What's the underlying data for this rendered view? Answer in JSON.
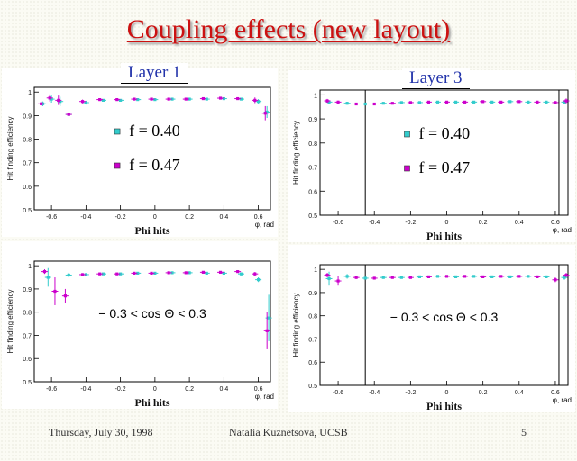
{
  "slide": {
    "title": "Coupling effects (new layout)",
    "footer_date": "Thursday, July 30, 1998",
    "footer_author": "Natalia Kuznetsova, UCSB",
    "footer_page": "5"
  },
  "labels": {
    "layer1": "Layer 1",
    "layer3": "Layer 3"
  },
  "colors": {
    "title": "#cc1111",
    "layer_label": "#2233aa",
    "series_f040": "#33cccc",
    "series_f047": "#cc00cc"
  },
  "legend": [
    {
      "label": "f = 0.40",
      "color": "#33cccc"
    },
    {
      "label": "f = 0.47",
      "color": "#cc00cc"
    }
  ],
  "chart_data": [
    {
      "type": "scatter",
      "panel": "layer1-top",
      "ylabel": "Hit finding efficiency",
      "xlabel": "Phi hits",
      "x_unit_label": "φ, rad",
      "annotation": "",
      "xlim": [
        -0.7,
        0.67
      ],
      "ylim": [
        0.5,
        1.02
      ],
      "xticks": [
        -0.6,
        -0.4,
        -0.2,
        0,
        0.2,
        0.4,
        0.6
      ],
      "xtick_labels": [
        "-0.6",
        "-0.4",
        "-0.2",
        "0",
        "0.2",
        "0.4",
        "0.6"
      ],
      "yticks": [
        0.5,
        0.6,
        0.7,
        0.8,
        0.9,
        1.0
      ],
      "ytick_labels": [
        "0.5",
        "0.6",
        "0.7",
        "0.8",
        "0.9",
        "1"
      ],
      "vlines": [],
      "series": [
        {
          "name": "f = 0.40",
          "color": "#33cccc",
          "x": [
            -0.65,
            -0.6,
            -0.55,
            -0.5,
            -0.4,
            -0.3,
            -0.2,
            -0.1,
            0.0,
            0.1,
            0.2,
            0.3,
            0.4,
            0.5,
            0.6,
            0.65
          ],
          "y": [
            0.95,
            0.97,
            0.96,
            0.905,
            0.955,
            0.965,
            0.965,
            0.968,
            0.968,
            0.97,
            0.97,
            0.97,
            0.972,
            0.97,
            0.96,
            0.915
          ],
          "err": [
            0.01,
            0.015,
            0.02,
            0.005,
            0.008,
            0.004,
            0.004,
            0.004,
            0.004,
            0.004,
            0.004,
            0.004,
            0.004,
            0.004,
            0.01,
            0.025
          ]
        },
        {
          "name": "f = 0.47",
          "color": "#cc00cc",
          "x": [
            -0.66,
            -0.61,
            -0.56,
            -0.5,
            -0.42,
            -0.32,
            -0.22,
            -0.12,
            -0.02,
            0.08,
            0.18,
            0.28,
            0.38,
            0.48,
            0.58,
            0.64
          ],
          "y": [
            0.95,
            0.975,
            0.965,
            0.905,
            0.96,
            0.968,
            0.968,
            0.97,
            0.97,
            0.97,
            0.97,
            0.972,
            0.974,
            0.972,
            0.965,
            0.91
          ],
          "err": [
            0.01,
            0.015,
            0.02,
            0.005,
            0.008,
            0.004,
            0.004,
            0.004,
            0.004,
            0.004,
            0.004,
            0.004,
            0.004,
            0.004,
            0.012,
            0.03
          ]
        }
      ]
    },
    {
      "type": "scatter",
      "panel": "layer3-top",
      "ylabel": "Hit finding efficiency",
      "xlabel": "Phi hits",
      "x_unit_label": "φ, rad",
      "annotation": "",
      "xlim": [
        -0.7,
        0.67
      ],
      "ylim": [
        0.5,
        1.02
      ],
      "xticks": [
        -0.6,
        -0.4,
        -0.2,
        0,
        0.2,
        0.4,
        0.6
      ],
      "xtick_labels": [
        "-0.6",
        "-0.4",
        "-0.2",
        "0",
        "0.2",
        "0.4",
        "0.6"
      ],
      "yticks": [
        0.5,
        0.6,
        0.7,
        0.8,
        0.9,
        1.0
      ],
      "ytick_labels": [
        "0.5",
        "0.6",
        "0.7",
        "0.8",
        "0.9",
        "1"
      ],
      "vlines": [
        -0.45,
        0.62
      ],
      "series": [
        {
          "name": "f = 0.40",
          "color": "#33cccc",
          "x": [
            -0.65,
            -0.55,
            -0.45,
            -0.35,
            -0.25,
            -0.15,
            -0.05,
            0.05,
            0.15,
            0.25,
            0.35,
            0.45,
            0.55,
            0.65
          ],
          "y": [
            0.97,
            0.965,
            0.962,
            0.965,
            0.968,
            0.968,
            0.97,
            0.97,
            0.97,
            0.97,
            0.972,
            0.97,
            0.97,
            0.97
          ],
          "err": [
            0.008,
            0.006,
            0.004,
            0.004,
            0.004,
            0.004,
            0.004,
            0.004,
            0.004,
            0.004,
            0.004,
            0.004,
            0.004,
            0.008
          ]
        },
        {
          "name": "f = 0.47",
          "color": "#cc00cc",
          "x": [
            -0.66,
            -0.6,
            -0.5,
            -0.4,
            -0.3,
            -0.2,
            -0.1,
            0.0,
            0.1,
            0.2,
            0.3,
            0.4,
            0.5,
            0.6,
            0.66
          ],
          "y": [
            0.975,
            0.97,
            0.962,
            0.962,
            0.965,
            0.968,
            0.97,
            0.97,
            0.97,
            0.972,
            0.97,
            0.972,
            0.97,
            0.968,
            0.975
          ],
          "err": [
            0.008,
            0.006,
            0.004,
            0.004,
            0.004,
            0.004,
            0.004,
            0.004,
            0.004,
            0.004,
            0.004,
            0.004,
            0.004,
            0.006,
            0.01
          ]
        }
      ]
    },
    {
      "type": "scatter",
      "panel": "layer1-bottom",
      "ylabel": "Hit finding efficiency",
      "xlabel": "Phi hits",
      "x_unit_label": "φ, rad",
      "annotation": "− 0.3 < cos Θ < 0.3",
      "xlim": [
        -0.7,
        0.67
      ],
      "ylim": [
        0.5,
        1.02
      ],
      "xticks": [
        -0.6,
        -0.4,
        -0.2,
        0,
        0.2,
        0.4,
        0.6
      ],
      "xtick_labels": [
        "-0.6",
        "-0.4",
        "-0.2",
        "0",
        "0.2",
        "0.4",
        "0.6"
      ],
      "yticks": [
        0.5,
        0.6,
        0.7,
        0.8,
        0.9,
        1.0
      ],
      "ytick_labels": [
        "0.5",
        "0.6",
        "0.7",
        "0.8",
        "0.9",
        "1"
      ],
      "vlines": [],
      "series": [
        {
          "name": "f = 0.40",
          "color": "#33cccc",
          "x": [
            -0.62,
            -0.5,
            -0.4,
            -0.3,
            -0.2,
            -0.1,
            0.0,
            0.1,
            0.2,
            0.3,
            0.4,
            0.5,
            0.6,
            0.66
          ],
          "y": [
            0.95,
            0.96,
            0.962,
            0.965,
            0.965,
            0.968,
            0.968,
            0.97,
            0.97,
            0.968,
            0.968,
            0.965,
            0.94,
            0.775
          ],
          "err": [
            0.04,
            0.01,
            0.006,
            0.005,
            0.005,
            0.004,
            0.004,
            0.004,
            0.004,
            0.004,
            0.004,
            0.006,
            0.01,
            0.1
          ]
        },
        {
          "name": "f = 0.47",
          "color": "#cc00cc",
          "x": [
            -0.64,
            -0.58,
            -0.52,
            -0.42,
            -0.32,
            -0.22,
            -0.12,
            -0.02,
            0.08,
            0.18,
            0.28,
            0.38,
            0.48,
            0.58,
            0.65
          ],
          "y": [
            0.975,
            0.89,
            0.87,
            0.962,
            0.965,
            0.965,
            0.968,
            0.968,
            0.97,
            0.97,
            0.972,
            0.972,
            0.975,
            0.965,
            0.72
          ],
          "err": [
            0.01,
            0.06,
            0.03,
            0.006,
            0.005,
            0.005,
            0.004,
            0.004,
            0.004,
            0.004,
            0.004,
            0.004,
            0.004,
            0.008,
            0.08
          ]
        }
      ]
    },
    {
      "type": "scatter",
      "panel": "layer3-bottom",
      "ylabel": "Hit finding efficiency",
      "xlabel": "Phi hits",
      "x_unit_label": "φ, rad",
      "annotation": "− 0.3 < cos Θ < 0.3",
      "xlim": [
        -0.7,
        0.67
      ],
      "ylim": [
        0.5,
        1.02
      ],
      "xticks": [
        -0.6,
        -0.4,
        -0.2,
        0,
        0.2,
        0.4,
        0.6
      ],
      "xtick_labels": [
        "-0.6",
        "-0.4",
        "-0.2",
        "0",
        "0.2",
        "0.4",
        "0.6"
      ],
      "yticks": [
        0.5,
        0.6,
        0.7,
        0.8,
        0.9,
        1.0
      ],
      "ytick_labels": [
        "0.5",
        "0.6",
        "0.7",
        "0.8",
        "0.9",
        "1"
      ],
      "vlines": [
        -0.45,
        0.62
      ],
      "series": [
        {
          "name": "f = 0.40",
          "color": "#33cccc",
          "x": [
            -0.65,
            -0.55,
            -0.45,
            -0.35,
            -0.25,
            -0.15,
            -0.05,
            0.05,
            0.15,
            0.25,
            0.35,
            0.45,
            0.55,
            0.65
          ],
          "y": [
            0.96,
            0.97,
            0.962,
            0.965,
            0.965,
            0.968,
            0.97,
            0.968,
            0.97,
            0.968,
            0.968,
            0.97,
            0.968,
            0.965
          ],
          "err": [
            0.03,
            0.01,
            0.004,
            0.004,
            0.004,
            0.004,
            0.004,
            0.004,
            0.004,
            0.004,
            0.004,
            0.004,
            0.004,
            0.01
          ]
        },
        {
          "name": "f = 0.47",
          "color": "#cc00cc",
          "x": [
            -0.66,
            -0.6,
            -0.5,
            -0.4,
            -0.3,
            -0.2,
            -0.1,
            0.0,
            0.1,
            0.2,
            0.3,
            0.4,
            0.5,
            0.6,
            0.66
          ],
          "y": [
            0.975,
            0.95,
            0.965,
            0.962,
            0.965,
            0.965,
            0.968,
            0.97,
            0.97,
            0.968,
            0.97,
            0.97,
            0.968,
            0.955,
            0.975
          ],
          "err": [
            0.01,
            0.02,
            0.006,
            0.004,
            0.004,
            0.004,
            0.004,
            0.004,
            0.004,
            0.004,
            0.004,
            0.004,
            0.004,
            0.01,
            0.01
          ]
        }
      ]
    }
  ]
}
